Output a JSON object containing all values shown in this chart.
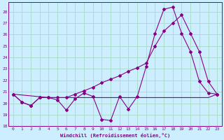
{
  "xlabel": "Windchill (Refroidissement éolien,°C)",
  "bg_color": "#cceeff",
  "grid_color": "#aaddcc",
  "line_color": "#880088",
  "xlim": [
    -0.5,
    23.5
  ],
  "ylim": [
    18,
    28.8
  ],
  "yticks": [
    18,
    19,
    20,
    21,
    22,
    23,
    24,
    25,
    26,
    27,
    28
  ],
  "xticks": [
    0,
    1,
    2,
    3,
    4,
    5,
    6,
    7,
    8,
    9,
    10,
    11,
    12,
    13,
    14,
    15,
    16,
    17,
    18,
    19,
    20,
    21,
    22,
    23
  ],
  "series_zigzag_x": [
    0,
    1,
    2,
    3,
    4,
    5,
    6,
    7,
    8,
    9,
    10,
    11,
    12,
    13,
    14,
    15,
    16,
    17,
    18,
    19,
    20,
    21,
    22,
    23
  ],
  "series_zigzag_y": [
    20.8,
    20.1,
    19.8,
    20.5,
    20.5,
    20.3,
    19.4,
    20.4,
    20.9,
    20.6,
    18.6,
    18.5,
    20.6,
    19.5,
    20.6,
    23.2,
    26.1,
    28.2,
    28.4,
    26.1,
    24.5,
    21.9,
    20.9,
    20.8
  ],
  "series_flat_x": [
    0,
    4,
    5,
    6,
    7,
    8,
    9,
    10,
    11,
    12,
    13,
    14,
    15,
    16,
    17,
    18,
    19,
    20,
    21,
    22,
    23
  ],
  "series_flat_y": [
    20.8,
    20.5,
    20.5,
    20.5,
    20.5,
    20.5,
    20.5,
    20.5,
    20.5,
    20.5,
    20.5,
    20.5,
    20.5,
    20.5,
    20.5,
    20.5,
    20.5,
    20.5,
    20.5,
    20.5,
    20.8
  ],
  "series_diagonal_x": [
    0,
    1,
    2,
    3,
    4,
    5,
    6,
    7,
    8,
    9,
    10,
    11,
    12,
    13,
    14,
    15,
    16,
    17,
    18,
    19,
    20,
    21,
    22,
    23
  ],
  "series_diagonal_y": [
    20.8,
    20.1,
    19.8,
    20.5,
    20.5,
    20.5,
    20.5,
    20.8,
    21.1,
    21.4,
    21.8,
    22.1,
    22.4,
    22.8,
    23.1,
    23.5,
    25.0,
    26.3,
    27.0,
    27.7,
    26.1,
    24.5,
    21.9,
    20.8
  ]
}
